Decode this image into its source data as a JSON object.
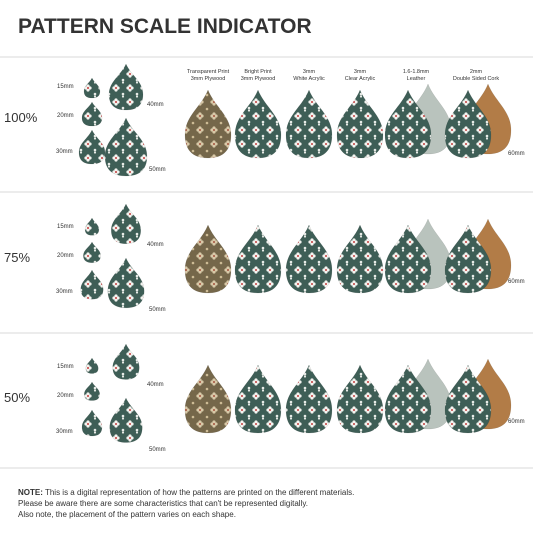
{
  "title": "PATTERN SCALE INDICATOR",
  "materials": [
    {
      "line1": "Transparent Print",
      "line2": "3mm Plywood"
    },
    {
      "line1": "Bright Print",
      "line2": "3mm Plywood"
    },
    {
      "line1": "3mm",
      "line2": "White Acrylic"
    },
    {
      "line1": "3mm",
      "line2": "Clear Acrylic"
    },
    {
      "line1": "1.6-1.8mm",
      "line2": "Leather"
    },
    {
      "line1": "2mm",
      "line2": "Double Sided Cork"
    }
  ],
  "rows": [
    {
      "scale": "100%",
      "sizes": [
        "15mm",
        "20mm",
        "30mm",
        "40mm",
        "50mm",
        "60mm"
      ]
    },
    {
      "scale": "75%",
      "sizes": [
        "15mm",
        "20mm",
        "30mm",
        "40mm",
        "50mm",
        "60mm"
      ]
    },
    {
      "scale": "50%",
      "sizes": [
        "15mm",
        "20mm",
        "30mm",
        "40mm",
        "50mm",
        "60mm"
      ]
    }
  ],
  "note": {
    "label": "NOTE:",
    "lines": [
      "This is a digital representation of how the patterns are printed on the different materials.",
      "Please be aware there are some characteristics that can't be represented digitally.",
      "Also note, the placement of the pattern varies on each shape."
    ]
  }
}
